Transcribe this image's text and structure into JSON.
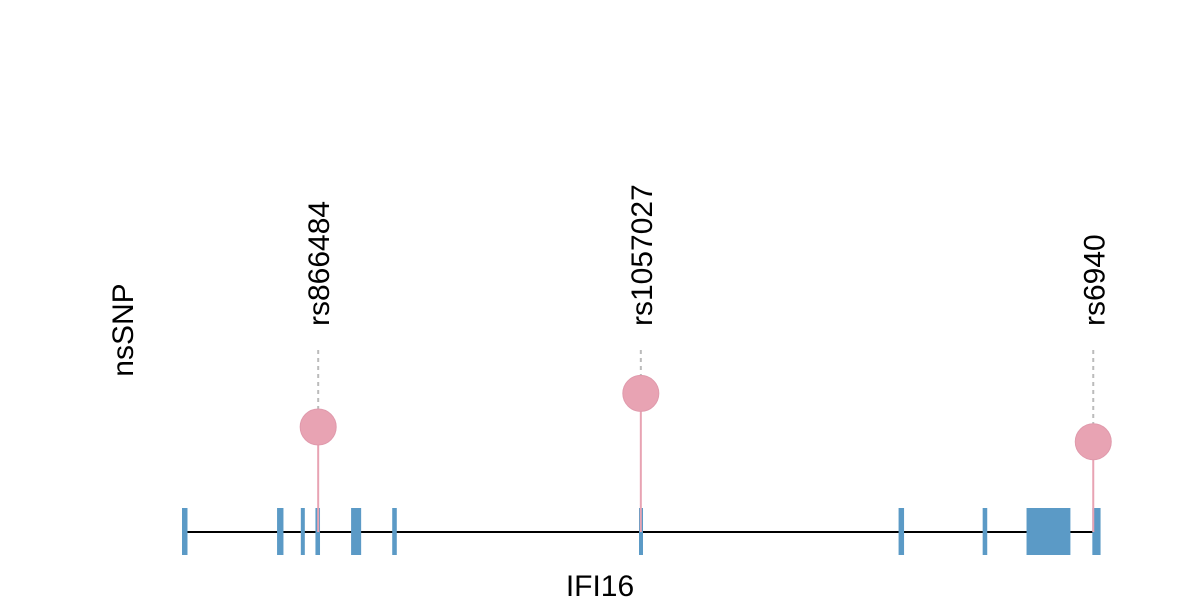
{
  "track_label": "nsSNP",
  "gene_label": "IFI16",
  "colors": {
    "exon": "#5b9ac6",
    "intron": "#000000",
    "snp_fill": "#e8a3b3",
    "snp_stem": "#e8a3b3",
    "guide": "#bbbbbb"
  },
  "chart_data": {
    "type": "lollipop",
    "title": "",
    "xlabel": "IFI16",
    "ylabel": "nsSNP",
    "x_range": [
      0,
      1000
    ],
    "y_range": [
      0,
      1
    ],
    "grid": false,
    "exons": [
      {
        "start": 0,
        "end": 6
      },
      {
        "start": 104,
        "end": 111
      },
      {
        "start": 130,
        "end": 134
      },
      {
        "start": 146,
        "end": 151
      },
      {
        "start": 185,
        "end": 196
      },
      {
        "start": 230,
        "end": 235
      },
      {
        "start": 500,
        "end": 504
      },
      {
        "start": 784,
        "end": 790
      },
      {
        "start": 876,
        "end": 881
      },
      {
        "start": 924,
        "end": 972
      },
      {
        "start": 996,
        "end": 1005
      }
    ],
    "snps": [
      {
        "id": "rs866484",
        "position": 149,
        "height": 0.5
      },
      {
        "id": "rs1057027",
        "position": 502,
        "height": 0.66
      },
      {
        "id": "rs6940",
        "position": 997,
        "height": 0.43
      }
    ]
  }
}
